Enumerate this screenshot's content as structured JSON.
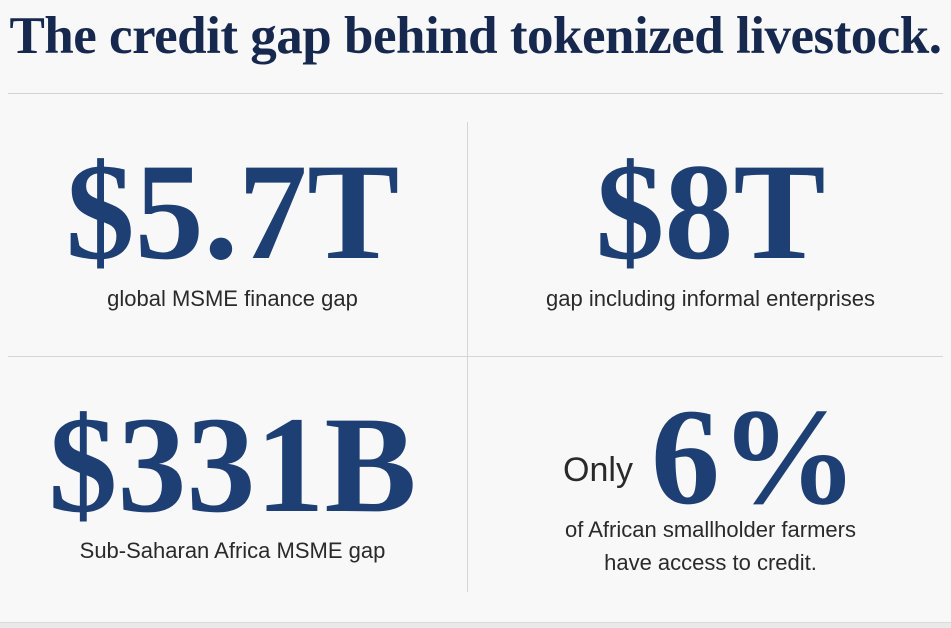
{
  "title": "The credit gap behind tokenized livestock.",
  "stats": [
    {
      "value": "$5.7T",
      "label": "global MSME finance gap"
    },
    {
      "value": "$8T",
      "label": "gap including informal enterprises"
    },
    {
      "value": "$331B",
      "label": "Sub-Saharan Africa MSME gap"
    },
    {
      "prefix": "Only",
      "value": "6%",
      "label_line1": "of African smallholder farmers",
      "label_line2": "have access to credit."
    }
  ],
  "colors": {
    "title": "#17284f",
    "accent": "#1e3f73",
    "text": "#2a2a2a",
    "background": "#f8f8f8"
  }
}
